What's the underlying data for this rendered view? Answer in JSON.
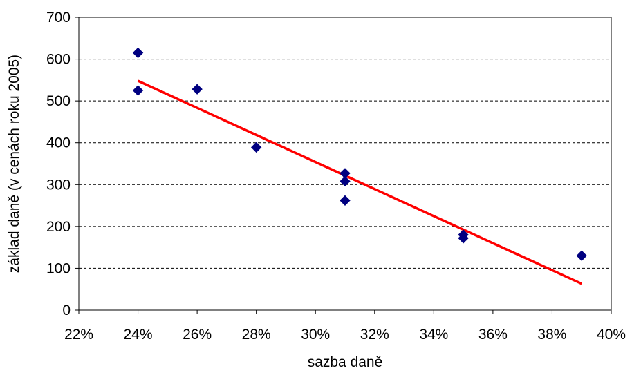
{
  "chart_data": {
    "type": "scatter",
    "xlabel": "sazba daně",
    "ylabel": "základ daně (v cenách roku 2005)",
    "xlim": [
      0.22,
      0.4
    ],
    "ylim": [
      0,
      700
    ],
    "x_ticks": [
      0.22,
      0.24,
      0.26,
      0.28,
      0.3,
      0.32,
      0.34,
      0.36,
      0.38,
      0.4
    ],
    "x_tick_labels": [
      "22%",
      "24%",
      "26%",
      "28%",
      "30%",
      "32%",
      "34%",
      "36%",
      "38%",
      "40%"
    ],
    "y_ticks": [
      0,
      100,
      200,
      300,
      400,
      500,
      600,
      700
    ],
    "y_tick_labels": [
      "0",
      "100",
      "200",
      "300",
      "400",
      "500",
      "600",
      "700"
    ],
    "grid": "horizontal dashed",
    "legend": "none",
    "series": [
      {
        "points": [
          [
            0.24,
            615
          ],
          [
            0.24,
            525
          ],
          [
            0.26,
            528
          ],
          [
            0.28,
            389
          ],
          [
            0.31,
            327
          ],
          [
            0.31,
            308
          ],
          [
            0.31,
            262
          ],
          [
            0.35,
            180
          ],
          [
            0.35,
            172
          ],
          [
            0.39,
            130
          ]
        ],
        "marker": "diamond",
        "color": "#000080"
      }
    ],
    "trendline": {
      "type": "linear",
      "from": [
        0.24,
        548
      ],
      "to": [
        0.39,
        63
      ],
      "color": "#ff0000"
    }
  }
}
